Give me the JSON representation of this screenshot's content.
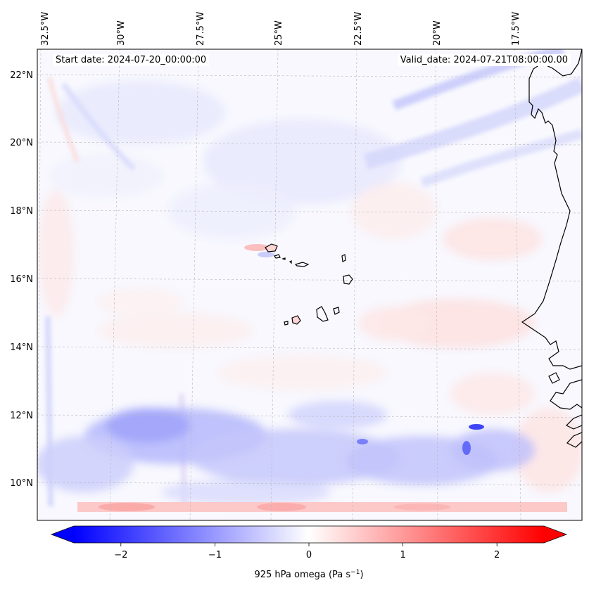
{
  "map": {
    "annotation_left": "Start date: 2024-07-20_00:00:00",
    "annotation_right": "Valid_date: 2024-07-21T08:00:00.00",
    "lon_labels": [
      "32.5°W",
      "30°W",
      "27.5°W",
      "25°W",
      "22.5°W",
      "20°W",
      "17.5°W"
    ],
    "lat_labels": [
      "22°N",
      "20°N",
      "18°N",
      "16°N",
      "14°N",
      "12°N",
      "10°N"
    ],
    "colors": {
      "negative": "#0000ff",
      "zero": "#ffffff",
      "positive": "#ff0000",
      "coast": "#000000"
    }
  },
  "colorbar": {
    "label": "925 hPa omega (Pa s",
    "label_sup": "−1",
    "label_close": ")",
    "tick_values": [
      -2,
      -1,
      0,
      1,
      2
    ],
    "tick_labels": [
      "−2",
      "−1",
      "0",
      "1",
      "2"
    ],
    "range": [
      -2.5,
      2.5
    ]
  }
}
